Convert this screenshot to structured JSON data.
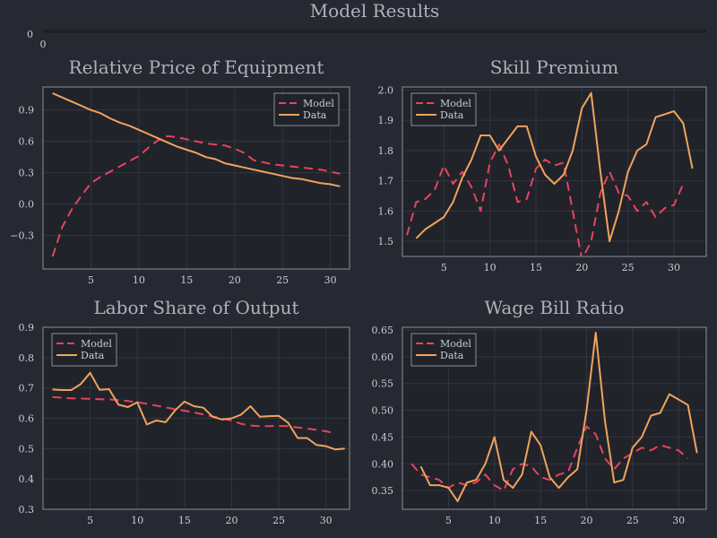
{
  "figure": {
    "title": "Model Results",
    "top_axis_ytick": "0",
    "top_axis_xtick": "0"
  },
  "colors": {
    "background": "#262932",
    "plot_background": "#20232a",
    "text": "#c8ccd4",
    "title_text": "#aeb2ba",
    "axis": "#8b8f98",
    "grid": "#33363f",
    "model": "#e8435f",
    "data": "#f0a35c"
  },
  "chart_data": [
    {
      "type": "line",
      "title": "Relative Price of Equipment",
      "xlim": [
        0,
        32
      ],
      "ylim": [
        -0.62,
        1.12
      ],
      "xticks": [
        5,
        10,
        15,
        20,
        25,
        30
      ],
      "yticks": [
        -0.3,
        0.0,
        0.3,
        0.6,
        0.9
      ],
      "ytick_labels": [
        "−0.3",
        "0.0",
        "0.3",
        "0.6",
        "0.9"
      ],
      "legend": "top-right",
      "x": [
        1,
        2,
        3,
        4,
        5,
        6,
        7,
        8,
        9,
        10,
        11,
        12,
        13,
        14,
        15,
        16,
        17,
        18,
        19,
        20,
        21,
        22,
        23,
        24,
        25,
        26,
        27,
        28,
        29,
        30,
        31
      ],
      "series": [
        {
          "name": "Model",
          "style": "dashed",
          "values": [
            -0.5,
            -0.22,
            -0.05,
            0.08,
            0.2,
            0.26,
            0.31,
            0.36,
            0.41,
            0.46,
            0.54,
            0.61,
            0.65,
            0.64,
            0.62,
            0.6,
            0.58,
            0.57,
            0.56,
            0.53,
            0.49,
            0.42,
            0.4,
            0.38,
            0.37,
            0.36,
            0.35,
            0.34,
            0.33,
            0.31,
            0.29
          ]
        },
        {
          "name": "Data",
          "style": "solid",
          "values": [
            1.06,
            1.02,
            0.98,
            0.94,
            0.9,
            0.87,
            0.82,
            0.78,
            0.75,
            0.71,
            0.67,
            0.63,
            0.59,
            0.55,
            0.52,
            0.49,
            0.45,
            0.43,
            0.39,
            0.37,
            0.35,
            0.33,
            0.31,
            0.29,
            0.27,
            0.25,
            0.24,
            0.22,
            0.2,
            0.19,
            0.17
          ]
        }
      ]
    },
    {
      "type": "line",
      "title": "Skill Premium",
      "xlim": [
        0.5,
        33.5
      ],
      "ylim": [
        1.45,
        2.01
      ],
      "xticks": [
        5,
        10,
        15,
        20,
        25,
        30
      ],
      "yticks": [
        1.5,
        1.6,
        1.7,
        1.8,
        1.9,
        2.0
      ],
      "ytick_labels": [
        "1.5",
        "1.6",
        "1.7",
        "1.8",
        "1.9",
        "2.0"
      ],
      "legend": "top-left",
      "x": [
        1,
        2,
        3,
        4,
        5,
        6,
        7,
        8,
        9,
        10,
        11,
        12,
        13,
        14,
        15,
        16,
        17,
        18,
        19,
        20,
        21,
        22,
        23,
        24,
        25,
        26,
        27,
        28,
        29,
        30,
        31,
        32
      ],
      "series": [
        {
          "name": "Model",
          "style": "dashed",
          "values": [
            1.52,
            1.63,
            1.64,
            1.67,
            1.75,
            1.69,
            1.73,
            1.68,
            1.6,
            1.76,
            1.82,
            1.75,
            1.63,
            1.64,
            1.74,
            1.77,
            1.75,
            1.76,
            1.6,
            1.44,
            1.5,
            1.66,
            1.73,
            1.66,
            1.65,
            1.6,
            1.63,
            1.58,
            1.61,
            1.62,
            1.69,
            null
          ],
          "value_range": [
            2,
            31
          ]
        },
        {
          "name": "Data",
          "style": "solid",
          "values": [
            null,
            1.51,
            1.54,
            1.56,
            1.58,
            1.63,
            1.71,
            1.77,
            1.85,
            1.85,
            1.8,
            1.84,
            1.88,
            1.88,
            1.78,
            1.72,
            1.69,
            1.72,
            1.8,
            1.94,
            1.99,
            1.73,
            1.5,
            1.6,
            1.73,
            1.8,
            1.82,
            1.91,
            1.92,
            1.93,
            1.89,
            1.74
          ]
        }
      ]
    },
    {
      "type": "line",
      "title": "Labor Share of Output",
      "xlim": [
        0,
        32.5
      ],
      "ylim": [
        0.3,
        0.9
      ],
      "xticks": [
        5,
        10,
        15,
        20,
        25,
        30
      ],
      "yticks": [
        0.3,
        0.4,
        0.5,
        0.6,
        0.7,
        0.8,
        0.9
      ],
      "ytick_labels": [
        "0.3",
        "0.4",
        "0.5",
        "0.6",
        "0.7",
        "0.8",
        "0.9"
      ],
      "legend": "top-left",
      "x": [
        1,
        2,
        3,
        4,
        5,
        6,
        7,
        8,
        9,
        10,
        11,
        12,
        13,
        14,
        15,
        16,
        17,
        18,
        19,
        20,
        21,
        22,
        23,
        24,
        25,
        26,
        27,
        28,
        29,
        30,
        31,
        32
      ],
      "series": [
        {
          "name": "Model",
          "style": "dashed",
          "values": [
            0.67,
            0.668,
            0.666,
            0.665,
            0.664,
            0.663,
            0.662,
            0.66,
            0.657,
            0.653,
            0.648,
            0.642,
            0.636,
            0.63,
            0.625,
            0.619,
            0.613,
            0.606,
            0.6,
            0.592,
            0.582,
            0.576,
            0.574,
            0.574,
            0.575,
            0.574,
            0.57,
            0.566,
            0.562,
            0.557,
            0.55,
            null
          ]
        },
        {
          "name": "Data",
          "style": "solid",
          "values": [
            0.695,
            0.693,
            0.693,
            0.713,
            0.75,
            0.694,
            0.696,
            0.645,
            0.637,
            0.653,
            0.58,
            0.593,
            0.587,
            0.626,
            0.655,
            0.64,
            0.635,
            0.605,
            0.596,
            0.6,
            0.612,
            0.64,
            0.605,
            0.607,
            0.608,
            0.585,
            0.535,
            0.535,
            0.512,
            0.508,
            0.497,
            0.5
          ]
        }
      ]
    },
    {
      "type": "line",
      "title": "Wage Bill Ratio",
      "xlim": [
        0,
        33
      ],
      "ylim": [
        0.315,
        0.655
      ],
      "xticks": [
        5,
        10,
        15,
        20,
        25,
        30
      ],
      "yticks": [
        0.35,
        0.4,
        0.45,
        0.5,
        0.55,
        0.6,
        0.65
      ],
      "ytick_labels": [
        "0.35",
        "0.40",
        "0.45",
        "0.50",
        "0.55",
        "0.60",
        "0.65"
      ],
      "legend": "top-left",
      "x": [
        1,
        2,
        3,
        4,
        5,
        6,
        7,
        8,
        9,
        10,
        11,
        12,
        13,
        14,
        15,
        16,
        17,
        18,
        19,
        20,
        21,
        22,
        23,
        24,
        25,
        26,
        27,
        28,
        29,
        30,
        31,
        32
      ],
      "series": [
        {
          "name": "Model",
          "style": "dashed",
          "values": [
            0.4,
            0.38,
            0.375,
            0.37,
            0.355,
            0.365,
            0.36,
            0.365,
            0.38,
            0.36,
            0.35,
            0.39,
            0.4,
            0.395,
            0.375,
            0.37,
            0.38,
            0.385,
            0.43,
            0.47,
            0.455,
            0.41,
            0.39,
            0.41,
            0.42,
            0.43,
            0.425,
            0.435,
            0.43,
            0.425,
            0.41,
            null
          ]
        },
        {
          "name": "Data",
          "style": "solid",
          "values": [
            null,
            0.395,
            0.36,
            0.36,
            0.355,
            0.33,
            0.365,
            0.37,
            0.4,
            0.45,
            0.37,
            0.355,
            0.38,
            0.46,
            0.435,
            0.375,
            0.355,
            0.375,
            0.39,
            0.5,
            0.645,
            0.48,
            0.365,
            0.37,
            0.43,
            0.45,
            0.49,
            0.495,
            0.53,
            0.52,
            0.51,
            0.42
          ]
        }
      ]
    }
  ]
}
